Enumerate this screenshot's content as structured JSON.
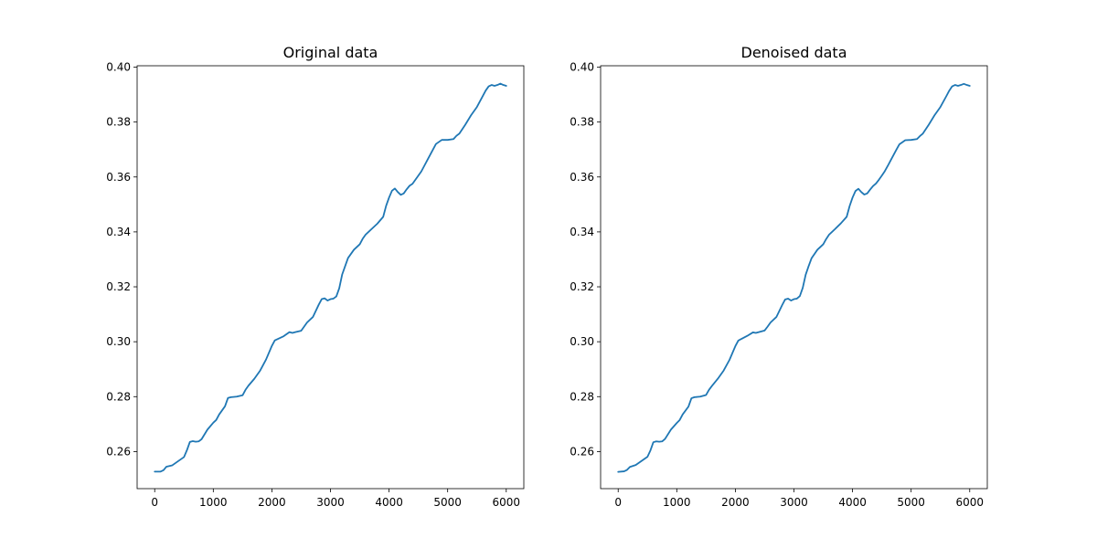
{
  "chart_data": [
    {
      "type": "line",
      "title": "Original data",
      "xlabel": "",
      "ylabel": "",
      "xlim": [
        -300,
        6300
      ],
      "ylim": [
        0.2465,
        0.4005
      ],
      "xticks": [
        0,
        1000,
        2000,
        3000,
        4000,
        5000,
        6000
      ],
      "yticks": [
        0.26,
        0.28,
        0.3,
        0.32,
        0.34,
        0.36,
        0.38,
        0.4
      ],
      "ytick_labels": [
        "0.26",
        "0.28",
        "0.30",
        "0.32",
        "0.34",
        "0.36",
        "0.38",
        "0.40"
      ],
      "grid": false,
      "series": [
        {
          "color": "#1f77b4",
          "x": [
            0,
            100,
            150,
            200,
            300,
            400,
            500,
            550,
            600,
            650,
            700,
            750,
            800,
            900,
            1000,
            1050,
            1100,
            1200,
            1250,
            1300,
            1400,
            1500,
            1550,
            1600,
            1700,
            1800,
            1900,
            2000,
            2050,
            2100,
            2200,
            2300,
            2350,
            2400,
            2500,
            2550,
            2600,
            2700,
            2800,
            2850,
            2900,
            2950,
            3000,
            3050,
            3100,
            3150,
            3200,
            3250,
            3300,
            3400,
            3500,
            3550,
            3600,
            3700,
            3800,
            3900,
            3950,
            4000,
            4050,
            4100,
            4150,
            4200,
            4250,
            4300,
            4350,
            4400,
            4450,
            4500,
            4550,
            4600,
            4650,
            4700,
            4750,
            4800,
            4900,
            5000,
            5100,
            5150,
            5200,
            5300,
            5400,
            5500,
            5600,
            5650,
            5700,
            5750,
            5800,
            5850,
            5900,
            5950,
            6000
          ],
          "y": [
            0.2527,
            0.2527,
            0.2532,
            0.2545,
            0.255,
            0.2565,
            0.258,
            0.2605,
            0.2635,
            0.2638,
            0.2636,
            0.2637,
            0.2645,
            0.268,
            0.2705,
            0.2715,
            0.2735,
            0.2765,
            0.2795,
            0.2798,
            0.28,
            0.2805,
            0.2825,
            0.284,
            0.2865,
            0.2895,
            0.2935,
            0.2985,
            0.3005,
            0.301,
            0.302,
            0.3035,
            0.3032,
            0.3035,
            0.304,
            0.3055,
            0.307,
            0.309,
            0.3135,
            0.3155,
            0.3158,
            0.315,
            0.3155,
            0.3157,
            0.3165,
            0.3195,
            0.3245,
            0.3275,
            0.3305,
            0.3335,
            0.3355,
            0.3375,
            0.339,
            0.341,
            0.343,
            0.3455,
            0.3495,
            0.3525,
            0.355,
            0.3558,
            0.3545,
            0.3535,
            0.354,
            0.3555,
            0.3568,
            0.3575,
            0.359,
            0.3605,
            0.362,
            0.364,
            0.366,
            0.368,
            0.37,
            0.372,
            0.3735,
            0.3735,
            0.3738,
            0.375,
            0.3758,
            0.379,
            0.3825,
            0.3855,
            0.3895,
            0.3915,
            0.393,
            0.3935,
            0.3932,
            0.3935,
            0.394,
            0.3935,
            0.3932
          ]
        }
      ]
    },
    {
      "type": "line",
      "title": "Denoised data",
      "xlabel": "",
      "ylabel": "",
      "xlim": [
        -300,
        6300
      ],
      "ylim": [
        0.2465,
        0.4005
      ],
      "xticks": [
        0,
        1000,
        2000,
        3000,
        4000,
        5000,
        6000
      ],
      "yticks": [
        0.26,
        0.28,
        0.3,
        0.32,
        0.34,
        0.36,
        0.38,
        0.4
      ],
      "ytick_labels": [
        "0.26",
        "0.28",
        "0.30",
        "0.32",
        "0.34",
        "0.36",
        "0.38",
        "0.40"
      ],
      "grid": false,
      "series": [
        {
          "color": "#1f77b4",
          "x": [
            0,
            100,
            150,
            200,
            300,
            400,
            500,
            550,
            600,
            650,
            700,
            750,
            800,
            900,
            1000,
            1050,
            1100,
            1200,
            1250,
            1300,
            1400,
            1500,
            1550,
            1600,
            1700,
            1800,
            1900,
            2000,
            2050,
            2100,
            2200,
            2300,
            2350,
            2400,
            2500,
            2550,
            2600,
            2700,
            2800,
            2850,
            2900,
            2950,
            3000,
            3050,
            3100,
            3150,
            3200,
            3250,
            3300,
            3400,
            3500,
            3550,
            3600,
            3700,
            3800,
            3900,
            3950,
            4000,
            4050,
            4100,
            4150,
            4200,
            4250,
            4300,
            4350,
            4400,
            4450,
            4500,
            4550,
            4600,
            4650,
            4700,
            4750,
            4800,
            4900,
            5000,
            5100,
            5150,
            5200,
            5300,
            5400,
            5500,
            5600,
            5650,
            5700,
            5750,
            5800,
            5850,
            5900,
            5950,
            6000
          ],
          "y": [
            0.2526,
            0.2528,
            0.2533,
            0.2544,
            0.2551,
            0.2566,
            0.2581,
            0.2604,
            0.2634,
            0.2637,
            0.2636,
            0.2637,
            0.2646,
            0.268,
            0.2704,
            0.2715,
            0.2735,
            0.2764,
            0.2794,
            0.2798,
            0.28,
            0.2806,
            0.2825,
            0.2839,
            0.2865,
            0.2895,
            0.2934,
            0.2984,
            0.3004,
            0.301,
            0.3021,
            0.3034,
            0.3032,
            0.3035,
            0.3041,
            0.3055,
            0.307,
            0.309,
            0.3134,
            0.3154,
            0.3157,
            0.315,
            0.3155,
            0.3157,
            0.3166,
            0.3196,
            0.3244,
            0.3275,
            0.3304,
            0.3335,
            0.3355,
            0.3374,
            0.339,
            0.341,
            0.3431,
            0.3455,
            0.3494,
            0.3525,
            0.3549,
            0.3557,
            0.3545,
            0.3536,
            0.354,
            0.3554,
            0.3567,
            0.3576,
            0.359,
            0.3605,
            0.3621,
            0.364,
            0.366,
            0.368,
            0.37,
            0.3719,
            0.3734,
            0.3735,
            0.3738,
            0.3749,
            0.3758,
            0.379,
            0.3825,
            0.3855,
            0.3894,
            0.3914,
            0.393,
            0.3935,
            0.3932,
            0.3935,
            0.3939,
            0.3935,
            0.3932
          ]
        }
      ]
    }
  ]
}
